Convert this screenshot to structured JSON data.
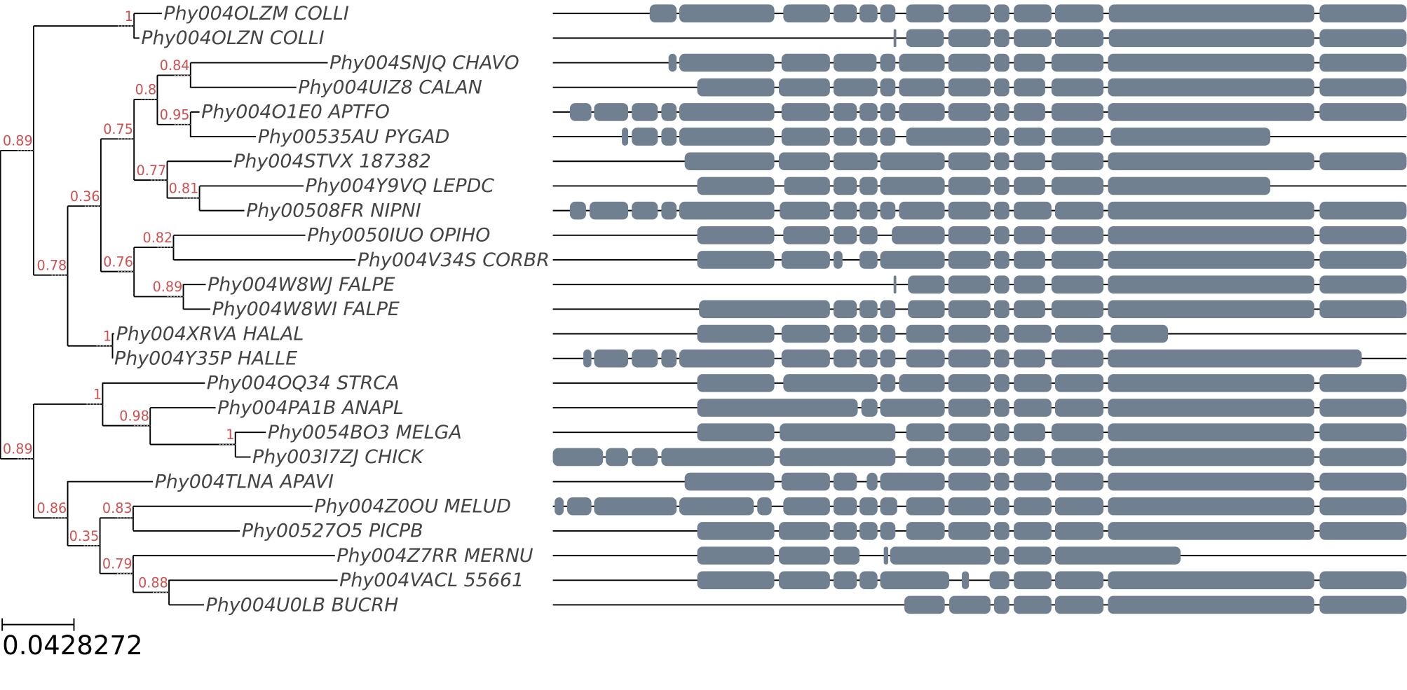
{
  "leaves": [
    {
      "label": "Phy004OLZM COLLI"
    },
    {
      "label": "Phy004OLZN COLLI"
    },
    {
      "label": "Phy004SNJQ CHAVO"
    },
    {
      "label": "Phy004UIZ8 CALAN"
    },
    {
      "label": "Phy004O1E0 APTFO"
    },
    {
      "label": "Phy00535AU PYGAD"
    },
    {
      "label": "Phy004STVX 187382"
    },
    {
      "label": "Phy004Y9VQ LEPDC"
    },
    {
      "label": "Phy00508FR NIPNI"
    },
    {
      "label": "Phy0050IUO OPIHO"
    },
    {
      "label": "Phy004V34S CORBR"
    },
    {
      "label": "Phy004W8WJ FALPE"
    },
    {
      "label": "Phy004W8WI FALPE"
    },
    {
      "label": "Phy004XRVA HALAL"
    },
    {
      "label": "Phy004Y35P HALLE"
    },
    {
      "label": "Phy004OQ34 STRCA"
    },
    {
      "label": "Phy004PA1B ANAPL"
    },
    {
      "label": "Phy0054BO3 MELGA"
    },
    {
      "label": "Phy003I7ZJ CHICK"
    },
    {
      "label": "Phy004TLNA APAVI"
    },
    {
      "label": "Phy004Z0OU MELUD"
    },
    {
      "label": "Phy00527O5 PICPB"
    },
    {
      "label": "Phy004Z7RR MERNU"
    },
    {
      "label": "Phy004VACL 55661"
    },
    {
      "label": "Phy004U0LB BUCRH"
    }
  ],
  "nodes": [
    {
      "support": "0.89"
    },
    {
      "support": "1"
    },
    {
      "support": "0.78"
    },
    {
      "support": "0.36"
    },
    {
      "support": "0.75"
    },
    {
      "support": "0.8"
    },
    {
      "support": "0.84"
    },
    {
      "support": "0.95"
    },
    {
      "support": "0.77"
    },
    {
      "support": "0.81"
    },
    {
      "support": "0.76"
    },
    {
      "support": "0.82"
    },
    {
      "support": "0.89"
    },
    {
      "support": "1"
    },
    {
      "support": "0.89"
    },
    {
      "support": "1"
    },
    {
      "support": "0.98"
    },
    {
      "support": "1"
    },
    {
      "support": "0.86"
    },
    {
      "support": "0.35"
    },
    {
      "support": "0.83"
    },
    {
      "support": "0.79"
    },
    {
      "support": "0.88"
    }
  ],
  "scale_bar": {
    "label": "0.0428272"
  }
}
